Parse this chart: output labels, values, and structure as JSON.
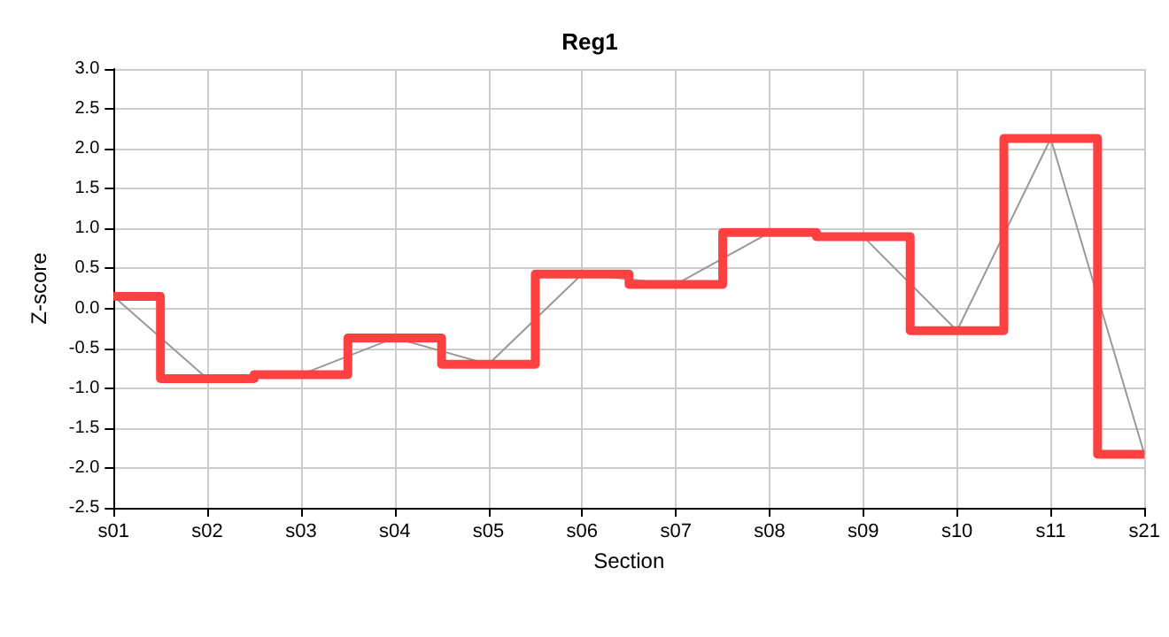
{
  "chart_data": {
    "type": "line",
    "title": "Reg1",
    "xlabel": "Section",
    "ylabel": "Z-score",
    "categories": [
      "s01",
      "s02",
      "s03",
      "s04",
      "s05",
      "s06",
      "s07",
      "s08",
      "s09",
      "s10",
      "s11",
      "s21"
    ],
    "series": [
      {
        "color": "#999999",
        "values": [
          0.15,
          -0.88,
          -0.83,
          -0.37,
          -0.7,
          0.43,
          0.3,
          0.95,
          0.9,
          -0.28,
          2.13,
          -1.83
        ]
      },
      {
        "type": "step",
        "color": "#ff4040",
        "values": [
          0.15,
          -0.88,
          -0.83,
          -0.37,
          -0.7,
          0.43,
          0.3,
          0.95,
          0.9,
          -0.28,
          2.13,
          -1.83
        ]
      }
    ],
    "ylim": [
      -2.5,
      3.0
    ],
    "yticks": [
      {
        "value": -2.5,
        "label": "-2.5"
      },
      {
        "value": -2,
        "label": "-2.0"
      },
      {
        "value": -1.5,
        "label": "-1.5"
      },
      {
        "value": -1,
        "label": "-1.0"
      },
      {
        "value": -0.5,
        "label": "-0.5"
      },
      {
        "value": 0,
        "label": "0.0"
      },
      {
        "value": 0.5,
        "label": "0.5"
      },
      {
        "value": 1,
        "label": "1.0"
      },
      {
        "value": 1.5,
        "label": "1.5"
      },
      {
        "value": 2,
        "label": "2.0"
      },
      {
        "value": 2.5,
        "label": "2.5"
      },
      {
        "value": 3,
        "label": "3.0"
      }
    ],
    "grid": true,
    "marker": "none",
    "line_style": "solid"
  }
}
